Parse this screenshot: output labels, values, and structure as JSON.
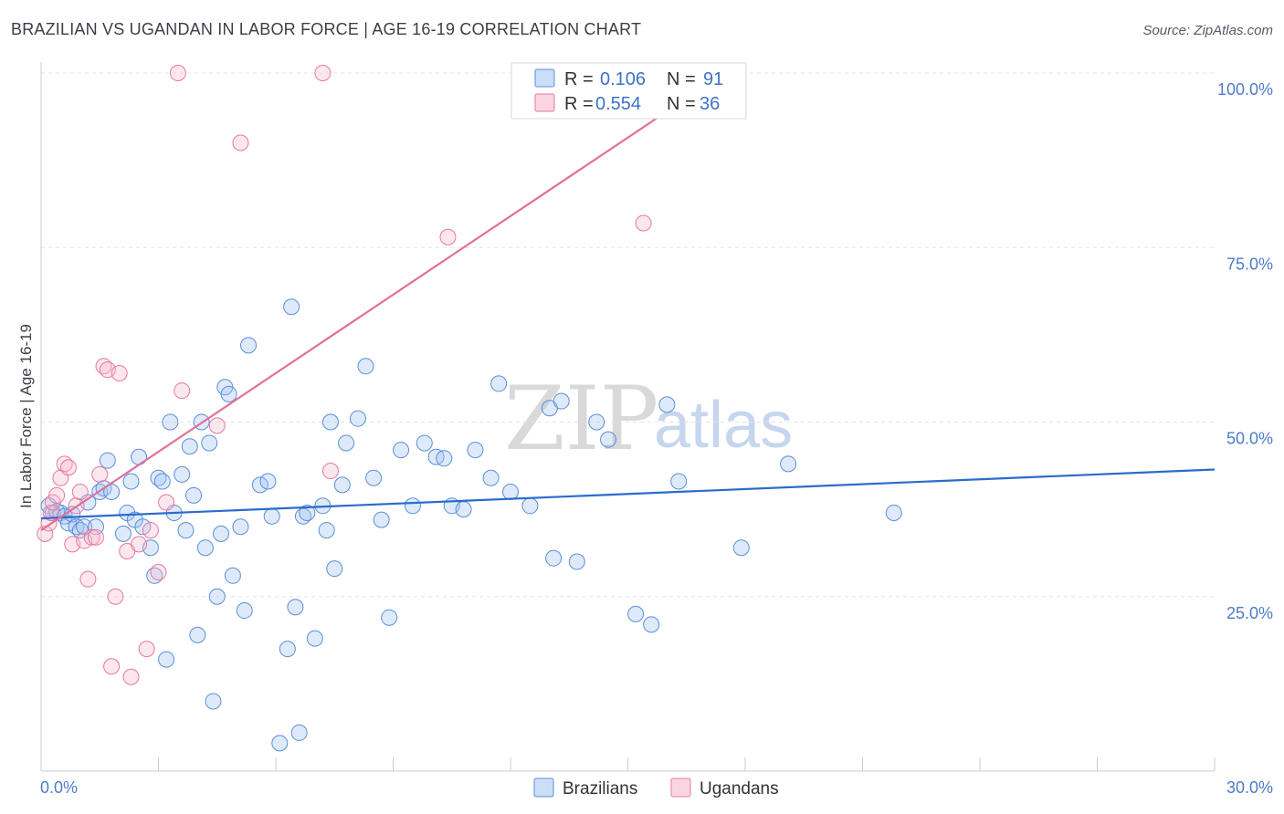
{
  "header": {
    "title": "BRAZILIAN VS UGANDAN IN LABOR FORCE | AGE 16-19 CORRELATION CHART",
    "source": "Source: ZipAtlas.com"
  },
  "watermark": {
    "zip": "ZIP",
    "atlas": "atlas"
  },
  "legend": {
    "rows": [
      {
        "r_label": "R =",
        "r_value": "0.106",
        "n_label": "N =",
        "n_value": "91",
        "color": "#5b8fd9"
      },
      {
        "r_label": "R =",
        "r_value": "0.554",
        "n_label": "N =",
        "n_value": "36",
        "color": "#e8799f"
      }
    ]
  },
  "chart_data": {
    "type": "scatter",
    "title": "BRAZILIAN VS UGANDAN IN LABOR FORCE | AGE 16-19 CORRELATION CHART",
    "xlabel": "",
    "ylabel": "In Labor Force | Age 16-19",
    "xlim": [
      0,
      30
    ],
    "ylim": [
      0,
      100
    ],
    "x_tick_labels": [
      "0.0%",
      "30.0%"
    ],
    "y_ticks": [
      25,
      50,
      75,
      100
    ],
    "y_tick_labels": [
      "25.0%",
      "50.0%",
      "75.0%",
      "100.0%"
    ],
    "grid": true,
    "series": [
      {
        "name": "Brazilians",
        "color": "#5b8fd9",
        "fill": "rgba(160,195,240,0.35)",
        "trend": {
          "x0": 0,
          "y0": 36.2,
          "x1": 30,
          "y1": 43.2
        },
        "points": [
          [
            0.2,
            38
          ],
          [
            0.3,
            37
          ],
          [
            0.4,
            37.2
          ],
          [
            0.5,
            37
          ],
          [
            0.6,
            36.5
          ],
          [
            0.7,
            35.5
          ],
          [
            0.8,
            36.8
          ],
          [
            0.9,
            35
          ],
          [
            1.0,
            34.5
          ],
          [
            1.1,
            35
          ],
          [
            1.2,
            38.5
          ],
          [
            1.4,
            35
          ],
          [
            1.5,
            40
          ],
          [
            1.6,
            40.5
          ],
          [
            1.7,
            44.5
          ],
          [
            1.8,
            40
          ],
          [
            2.1,
            34
          ],
          [
            2.2,
            37
          ],
          [
            2.3,
            41.5
          ],
          [
            2.4,
            36
          ],
          [
            2.5,
            45
          ],
          [
            2.6,
            35
          ],
          [
            2.8,
            32
          ],
          [
            2.9,
            28
          ],
          [
            3.0,
            42
          ],
          [
            3.1,
            41.5
          ],
          [
            3.2,
            16
          ],
          [
            3.3,
            50
          ],
          [
            3.4,
            37
          ],
          [
            3.6,
            42.5
          ],
          [
            3.7,
            34.5
          ],
          [
            3.8,
            46.5
          ],
          [
            3.9,
            39.5
          ],
          [
            4.0,
            19.5
          ],
          [
            4.1,
            50
          ],
          [
            4.2,
            32
          ],
          [
            4.3,
            47
          ],
          [
            4.4,
            10
          ],
          [
            4.5,
            25
          ],
          [
            4.6,
            34
          ],
          [
            4.7,
            55
          ],
          [
            4.8,
            54
          ],
          [
            4.9,
            28
          ],
          [
            5.1,
            35
          ],
          [
            5.2,
            23
          ],
          [
            5.3,
            61
          ],
          [
            5.6,
            41
          ],
          [
            5.8,
            41.5
          ],
          [
            5.9,
            36.5
          ],
          [
            6.1,
            4
          ],
          [
            6.3,
            17.5
          ],
          [
            6.4,
            66.5
          ],
          [
            6.5,
            23.5
          ],
          [
            6.6,
            5.5
          ],
          [
            6.7,
            36.5
          ],
          [
            6.8,
            37
          ],
          [
            7.0,
            19
          ],
          [
            7.2,
            38
          ],
          [
            7.3,
            34.5
          ],
          [
            7.4,
            50
          ],
          [
            7.5,
            29
          ],
          [
            7.7,
            41
          ],
          [
            7.8,
            47
          ],
          [
            8.1,
            50.5
          ],
          [
            8.3,
            58
          ],
          [
            8.5,
            42
          ],
          [
            8.7,
            36
          ],
          [
            8.9,
            22
          ],
          [
            9.2,
            46
          ],
          [
            9.5,
            38
          ],
          [
            9.8,
            47
          ],
          [
            10.1,
            45
          ],
          [
            10.3,
            44.8
          ],
          [
            10.5,
            38
          ],
          [
            10.8,
            37.5
          ],
          [
            11.1,
            46
          ],
          [
            11.5,
            42
          ],
          [
            11.7,
            55.5
          ],
          [
            12.0,
            40
          ],
          [
            12.5,
            38
          ],
          [
            13.0,
            52
          ],
          [
            13.1,
            30.5
          ],
          [
            13.3,
            53
          ],
          [
            13.7,
            30
          ],
          [
            14.2,
            50
          ],
          [
            14.5,
            47.5
          ],
          [
            15.2,
            22.5
          ],
          [
            15.6,
            21
          ],
          [
            16.0,
            52.5
          ],
          [
            16.3,
            41.5
          ],
          [
            17.9,
            32
          ],
          [
            19.1,
            44
          ],
          [
            21.8,
            37
          ]
        ]
      },
      {
        "name": "Ugandans",
        "color": "#e8799f",
        "fill": "rgba(245,185,205,0.35)",
        "trend": {
          "x0": 0,
          "y0": 34.5,
          "x1": 17.2,
          "y1": 99
        },
        "points": [
          [
            0.1,
            34
          ],
          [
            0.2,
            35.5
          ],
          [
            0.25,
            37
          ],
          [
            0.3,
            38.5
          ],
          [
            0.4,
            39.5
          ],
          [
            0.5,
            42
          ],
          [
            0.6,
            44
          ],
          [
            0.7,
            43.5
          ],
          [
            0.8,
            32.5
          ],
          [
            0.9,
            38
          ],
          [
            1.0,
            40
          ],
          [
            1.1,
            33
          ],
          [
            1.2,
            27.5
          ],
          [
            1.3,
            33.5
          ],
          [
            1.4,
            33.5
          ],
          [
            1.5,
            42.5
          ],
          [
            1.6,
            58
          ],
          [
            1.7,
            57.5
          ],
          [
            1.8,
            15
          ],
          [
            1.9,
            25
          ],
          [
            2.0,
            57
          ],
          [
            2.2,
            31.5
          ],
          [
            2.3,
            13.5
          ],
          [
            2.5,
            32.5
          ],
          [
            2.7,
            17.5
          ],
          [
            2.8,
            34.5
          ],
          [
            3.0,
            28.5
          ],
          [
            3.2,
            38.5
          ],
          [
            3.5,
            100
          ],
          [
            3.6,
            54.5
          ],
          [
            4.5,
            49.5
          ],
          [
            5.1,
            90
          ],
          [
            7.2,
            100
          ],
          [
            7.4,
            43
          ],
          [
            10.4,
            76.5
          ],
          [
            15.4,
            78.5
          ]
        ]
      }
    ]
  },
  "bottom_legend": {
    "items": [
      {
        "label": "Brazilians",
        "color": "#5b8fd9"
      },
      {
        "label": "Ugandans",
        "color": "#e8799f"
      }
    ]
  }
}
